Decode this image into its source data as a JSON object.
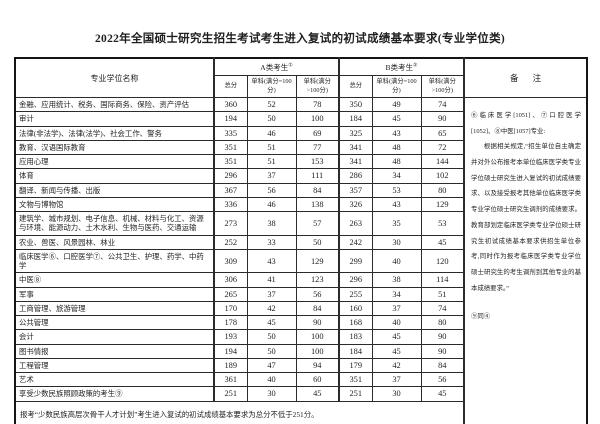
{
  "title": "2022年全国硕士研究生招生考试考生进入复试的初试成绩基本要求(专业学位类)",
  "table": {
    "col_name_header": "专业学位名称",
    "group_a": {
      "label": "A类考生",
      "sup": "①"
    },
    "group_b": {
      "label": "B类考生",
      "sup": "②"
    },
    "sub_headers": [
      "总分",
      "单科(满分=100分)",
      "单科(满分>100分)"
    ],
    "remark_header": "备 注",
    "rows": [
      {
        "name": "金融、应用统计、税务、国际商务、保险、资产评估",
        "a": [
          360,
          52,
          78
        ],
        "b": [
          350,
          49,
          74
        ]
      },
      {
        "name": "审计",
        "a": [
          194,
          50,
          100
        ],
        "b": [
          184,
          45,
          90
        ]
      },
      {
        "name": "法律(非法学)、法律(法学)、社会工作、警务",
        "a": [
          335,
          46,
          69
        ],
        "b": [
          325,
          43,
          65
        ]
      },
      {
        "name": "教育、汉语国际教育",
        "a": [
          351,
          51,
          77
        ],
        "b": [
          341,
          48,
          72
        ]
      },
      {
        "name": "应用心理",
        "a": [
          351,
          51,
          153
        ],
        "b": [
          341,
          48,
          144
        ]
      },
      {
        "name": "体育",
        "a": [
          296,
          37,
          111
        ],
        "b": [
          286,
          34,
          102
        ]
      },
      {
        "name": "翻译、新闻与传播、出版",
        "a": [
          367,
          56,
          84
        ],
        "b": [
          357,
          53,
          80
        ]
      },
      {
        "name": "文物与博物馆",
        "a": [
          336,
          46,
          138
        ],
        "b": [
          326,
          43,
          129
        ]
      },
      {
        "name": "建筑学、城市规划、电子信息、机械、材料与化工、资源与环境、能源动力、土木水利、生物与医药、交通运输",
        "a": [
          273,
          38,
          57
        ],
        "b": [
          263,
          35,
          53
        ]
      },
      {
        "name": "农业、兽医、风景园林、林业",
        "a": [
          252,
          33,
          50
        ],
        "b": [
          242,
          30,
          45
        ]
      },
      {
        "name": "临床医学⑥、口腔医学⑦、公共卫生、护理、药学、中药学",
        "a": [
          309,
          43,
          129
        ],
        "b": [
          299,
          40,
          120
        ]
      },
      {
        "name": "中医⑧",
        "a": [
          306,
          41,
          123
        ],
        "b": [
          296,
          38,
          114
        ]
      },
      {
        "name": "军事",
        "a": [
          265,
          37,
          56
        ],
        "b": [
          255,
          34,
          51
        ]
      },
      {
        "name": "工商管理、旅游管理",
        "a": [
          170,
          42,
          84
        ],
        "b": [
          160,
          37,
          74
        ]
      },
      {
        "name": "公共管理",
        "a": [
          178,
          45,
          90
        ],
        "b": [
          168,
          40,
          80
        ]
      },
      {
        "name": "会计",
        "a": [
          193,
          50,
          100
        ],
        "b": [
          183,
          45,
          90
        ]
      },
      {
        "name": "图书情报",
        "a": [
          194,
          50,
          100
        ],
        "b": [
          184,
          45,
          90
        ]
      },
      {
        "name": "工程管理",
        "a": [
          189,
          47,
          94
        ],
        "b": [
          179,
          42,
          84
        ]
      },
      {
        "name": "艺术",
        "a": [
          361,
          40,
          60
        ],
        "b": [
          351,
          37,
          56
        ]
      },
      {
        "name": "享受少数民族照顾政策的考生⑨",
        "a": [
          251,
          30,
          45
        ],
        "b": [
          251,
          30,
          45
        ]
      }
    ],
    "remarks": [
      "⑥临床医学[1051]、⑦口腔医学[1052]、⑧中医[1057]专业:",
      "根据相关规定,“招生单位自主确定并对外公布报考本单位临床医学类专业学位硕士研究生进入复试的初试成绩要求、以及接受报考其他单位临床医学类专业学位硕士研究生调剂的成绩要求。教育部划定临床医学类专业学位硕士研究生初试成绩基本要求供招生单位参考,同时作为报考临床医学类专业学位硕士研究生的考生调剂到其他专业的基本成绩要求。”",
      "⑨同④"
    ],
    "footer": "报考“少数民族高层次骨干人才计划”考生进入复试的初试成绩基本要求为总分不低于251分。"
  }
}
